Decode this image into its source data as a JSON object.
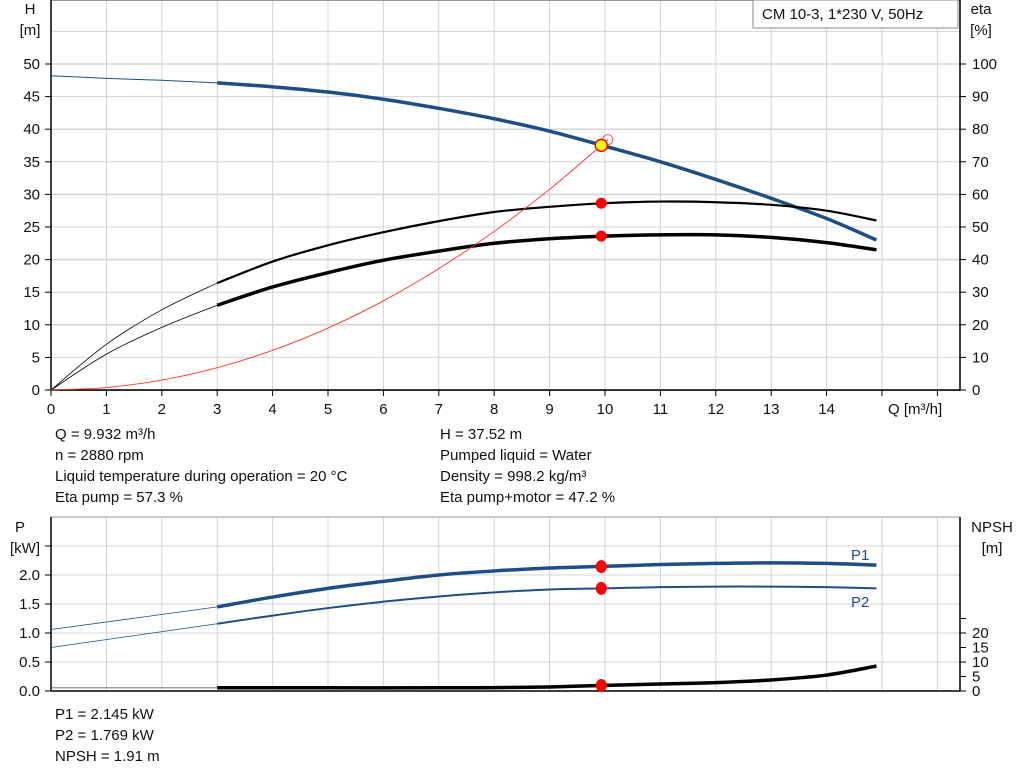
{
  "colors": {
    "head": "#1f4e85",
    "eta": "#000000",
    "system": "#ff3333",
    "power": "#1f4e85",
    "npsh": "#000000",
    "marker": "#ff0000",
    "duty_point": "#ffff00",
    "grid": "#d4d4d4"
  },
  "chart_data": [
    {
      "type": "line",
      "title": "CM 10-3, 1*230 V, 50Hz",
      "xlabel": "Q [m³/h]",
      "ylabel_left": [
        "H",
        "[m]"
      ],
      "ylabel_right": [
        "eta",
        "[%]"
      ],
      "xlim": [
        0,
        16
      ],
      "ylim_left": [
        0,
        55
      ],
      "ylim_right": [
        0,
        110
      ],
      "x_ticks": [
        0,
        1,
        2,
        3,
        4,
        5,
        6,
        7,
        8,
        9,
        10,
        11,
        12,
        13,
        14
      ],
      "y_ticks_left": [
        0,
        5,
        10,
        15,
        20,
        25,
        30,
        35,
        40,
        45,
        50
      ],
      "y_ticks_right": [
        0,
        10,
        20,
        30,
        40,
        50,
        60,
        70,
        80,
        90,
        100
      ],
      "grid": true,
      "series": [
        {
          "key": "head",
          "axis": "left",
          "thin_until": 3,
          "x": [
            0,
            1,
            2,
            3,
            4,
            5,
            6,
            7,
            8,
            9,
            10,
            11,
            12,
            13,
            14,
            14.9
          ],
          "y": [
            48.2,
            47.8,
            47.5,
            47.1,
            46.5,
            45.7,
            44.6,
            43.2,
            41.6,
            39.7,
            37.4,
            35.0,
            32.3,
            29.4,
            26.3,
            23.0
          ]
        },
        {
          "key": "eta_pump",
          "axis": "right",
          "thin_until": 3,
          "x": [
            0,
            1,
            2,
            3,
            4,
            5,
            6,
            7,
            8,
            9,
            10,
            11,
            12,
            13,
            14,
            14.9
          ],
          "y": [
            0,
            14,
            24.6,
            32.8,
            39.4,
            44.4,
            48.4,
            51.8,
            54.6,
            56.2,
            57.3,
            57.8,
            57.6,
            56.8,
            55.0,
            52.0
          ]
        },
        {
          "key": "eta_pump_motor",
          "axis": "right",
          "thin_until": 3,
          "x": [
            0,
            1,
            2,
            3,
            4,
            5,
            6,
            7,
            8,
            9,
            10,
            11,
            12,
            13,
            14,
            14.9
          ],
          "y": [
            0,
            11,
            19.2,
            26,
            31.6,
            36,
            39.8,
            42.6,
            45,
            46.4,
            47.2,
            47.6,
            47.6,
            46.8,
            45.2,
            43.0
          ]
        },
        {
          "key": "system",
          "axis": "left",
          "x": [
            0,
            1,
            2,
            3,
            4,
            5,
            6,
            7,
            8,
            9,
            9.932,
            10.05
          ],
          "y": [
            0,
            0.38,
            1.52,
            3.42,
            6.08,
            9.5,
            13.68,
            18.62,
            24.32,
            30.78,
            37.52,
            38.4
          ]
        }
      ],
      "duty_point": {
        "q": 9.932,
        "h": 37.52,
        "eta_pump": 57.3,
        "eta_pump_motor": 47.2
      }
    },
    {
      "type": "line",
      "xlim": [
        0,
        16
      ],
      "ylabel_left": [
        "P",
        "[kW]"
      ],
      "ylabel_right": [
        "NPSH",
        "[m]"
      ],
      "ylim_left": [
        0,
        3.0
      ],
      "ylim_right": [
        0,
        30
      ],
      "y_ticks_left": [
        "0.0",
        "0.5",
        "1.0",
        "1.5",
        "2.0"
      ],
      "y_ticks_right": [
        0,
        5,
        10,
        15,
        20
      ],
      "grid": true,
      "series": [
        {
          "key": "p1",
          "name": "P1",
          "axis": "left",
          "thin_until": 3,
          "x": [
            0,
            3,
            4,
            5,
            6,
            7,
            8,
            9,
            10,
            11,
            12,
            13,
            14,
            14.9
          ],
          "y": [
            1.06,
            1.45,
            1.62,
            1.77,
            1.89,
            2.0,
            2.07,
            2.12,
            2.15,
            2.18,
            2.2,
            2.21,
            2.2,
            2.17
          ]
        },
        {
          "key": "p2",
          "name": "P2",
          "axis": "left",
          "thin_until": 3,
          "x": [
            0,
            3,
            4,
            5,
            6,
            7,
            8,
            9,
            10,
            11,
            12,
            13,
            14,
            14.9
          ],
          "y": [
            0.75,
            1.16,
            1.3,
            1.43,
            1.54,
            1.63,
            1.7,
            1.75,
            1.77,
            1.79,
            1.8,
            1.8,
            1.79,
            1.77
          ]
        },
        {
          "key": "npsh",
          "axis": "right",
          "thin_until": 3,
          "x": [
            0,
            3,
            5,
            7,
            8,
            9,
            10,
            11,
            12,
            13,
            14,
            14.9
          ],
          "y": [
            1.1,
            1.1,
            1.1,
            1.1,
            1.15,
            1.4,
            1.95,
            2.4,
            2.9,
            3.8,
            5.5,
            8.6
          ]
        }
      ],
      "duty_point": {
        "q": 9.932,
        "p1": 2.145,
        "p2": 1.769,
        "npsh": 1.91
      }
    }
  ],
  "info_top_left": [
    "Q = 9.932 m³/h",
    "n = 2880 rpm",
    "Liquid temperature during operation = 20 °C",
    "Eta pump = 57.3 %"
  ],
  "info_top_right": [
    "H = 37.52 m",
    "Pumped liquid = Water",
    "Density = 998.2 kg/m³",
    "Eta pump+motor = 47.2 %"
  ],
  "info_bottom": [
    "P1 = 2.145 kW",
    "P2 = 1.769 kW",
    "NPSH = 1.91 m"
  ]
}
